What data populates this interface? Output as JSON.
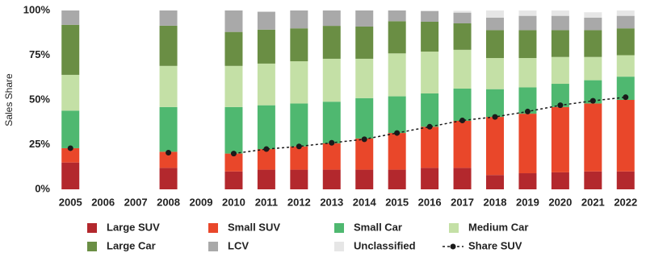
{
  "chart_data": {
    "type": "stacked-bar-line",
    "y_label": "Sales Share",
    "categories": [
      "2005",
      "2006",
      "2007",
      "2008",
      "2009",
      "2010",
      "2011",
      "2012",
      "2013",
      "2014",
      "2015",
      "2016",
      "2017",
      "2018",
      "2019",
      "2020",
      "2021",
      "2022"
    ],
    "series": [
      {
        "name": "Large SUV",
        "color": "#b3282d",
        "values": [
          15,
          null,
          null,
          12,
          null,
          10,
          11,
          11,
          11,
          11,
          11,
          12,
          12,
          8,
          9,
          9.5,
          10,
          10
        ]
      },
      {
        "name": "Small SUV",
        "color": "#e9472a",
        "values": [
          8,
          null,
          null,
          9,
          null,
          10,
          11.5,
          13,
          14.7,
          17.4,
          20.5,
          23,
          26.3,
          32.5,
          33.3,
          36.5,
          38,
          40
        ]
      },
      {
        "name": "Small Car",
        "color": "#4fb870",
        "values": [
          21,
          null,
          null,
          25,
          null,
          26,
          24.5,
          24,
          23.3,
          22.6,
          20.5,
          18.6,
          18,
          15.5,
          14.7,
          13,
          13,
          13
        ]
      },
      {
        "name": "Medium Car",
        "color": "#c4e0a6",
        "values": [
          20,
          null,
          null,
          23,
          null,
          23,
          23.3,
          23.6,
          24,
          22,
          24,
          23.4,
          21.7,
          17.4,
          16.4,
          15,
          13,
          12
        ]
      },
      {
        "name": "Large Car",
        "color": "#6a8e44",
        "values": [
          28,
          null,
          null,
          22.5,
          null,
          19,
          19,
          18.4,
          18.4,
          18,
          18,
          16.7,
          14.8,
          15.6,
          15.6,
          15,
          15,
          15
        ]
      },
      {
        "name": "LCV",
        "color": "#a9a9a9",
        "values": [
          8,
          null,
          null,
          8.5,
          null,
          12,
          10,
          10,
          8.6,
          9,
          6,
          6,
          6,
          7,
          8,
          8,
          7,
          7
        ]
      },
      {
        "name": "Unclassified",
        "color": "#e6e6e6",
        "values": [
          0,
          null,
          null,
          0,
          null,
          0,
          0,
          0,
          0,
          0,
          0,
          0,
          1,
          4,
          3,
          3,
          3,
          3
        ]
      }
    ],
    "line": {
      "name": "Share SUV",
      "color": "#1a1a1a",
      "values": [
        23,
        null,
        null,
        20.5,
        null,
        20,
        22.5,
        24,
        26,
        28,
        31.5,
        35,
        38.5,
        40.5,
        43.5,
        47,
        49.5,
        51.5
      ]
    },
    "ylim": [
      0,
      100
    ],
    "yticks": [
      {
        "value": 0,
        "label": "0%"
      },
      {
        "value": 25,
        "label": "25%"
      },
      {
        "value": 50,
        "label": "50%"
      },
      {
        "value": 75,
        "label": "75%"
      },
      {
        "value": 100,
        "label": "100%"
      }
    ]
  }
}
